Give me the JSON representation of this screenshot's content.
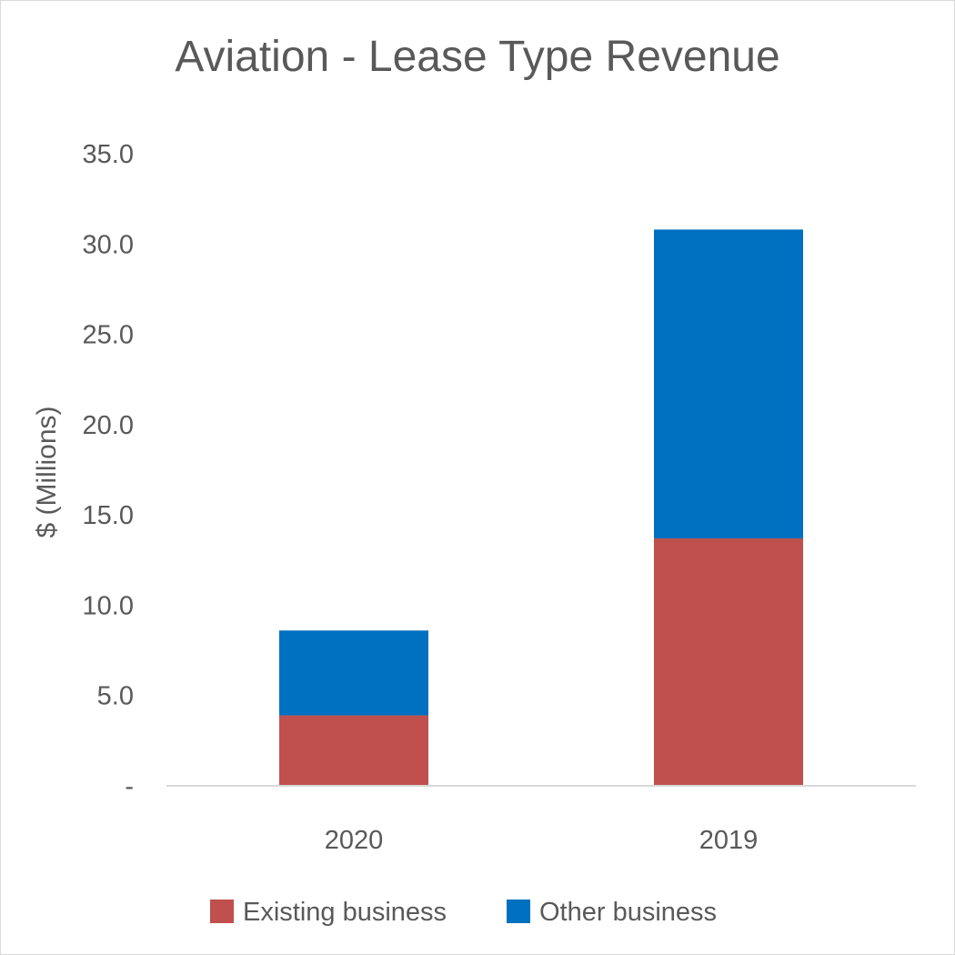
{
  "chart_data": {
    "type": "bar",
    "stacked": true,
    "title": "Aviation - Lease Type Revenue",
    "xlabel": "",
    "ylabel": "$ (Millions)",
    "categories": [
      "2020",
      "2019"
    ],
    "series": [
      {
        "name": "Existing business",
        "color": "#c0504d",
        "values": [
          3.9,
          13.7
        ]
      },
      {
        "name": "Other business",
        "color": "#0070c0",
        "values": [
          4.7,
          17.1
        ]
      }
    ],
    "ylim": [
      0,
      35
    ],
    "yticks": [
      0,
      5,
      10,
      15,
      20,
      25,
      30,
      35
    ],
    "ytick_labels": [
      "-",
      "5.0",
      "10.0",
      "15.0",
      "20.0",
      "25.0",
      "30.0",
      "35.0"
    ],
    "grid": false,
    "legend_position": "bottom"
  }
}
